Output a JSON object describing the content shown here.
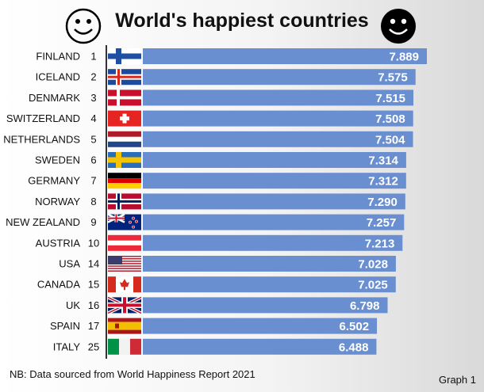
{
  "chart_data": {
    "type": "bar",
    "orientation": "horizontal",
    "title": "World's happiest countries",
    "categories": [
      "FINLAND",
      "ICELAND",
      "DENMARK",
      "SWITZERLAND",
      "NETHERLANDS",
      "SWEDEN",
      "GERMANY",
      "NORWAY",
      "NEW ZEALAND",
      "AUSTRIA",
      "USA",
      "CANADA",
      "UK",
      "SPAIN",
      "ITALY"
    ],
    "ranks": [
      "1",
      "2",
      "3",
      "4",
      "5",
      "6",
      "7",
      "8",
      "9",
      "10",
      "14",
      "15",
      "16",
      "17",
      "25"
    ],
    "values": [
      7.889,
      7.575,
      7.515,
      7.508,
      7.504,
      7.314,
      7.312,
      7.29,
      7.257,
      7.213,
      7.028,
      7.025,
      6.798,
      6.502,
      6.488
    ],
    "value_labels": [
      "7.889",
      "7.575",
      "7.515",
      "7.508",
      "7.504",
      "7.314",
      "7.312",
      "7.290",
      "7.257",
      "7.213",
      "7.028",
      "7.025",
      "6.798",
      "6.502",
      "6.488"
    ],
    "flags": [
      "finland-flag",
      "iceland-flag",
      "denmark-flag",
      "switzerland-flag",
      "netherlands-flag",
      "sweden-flag",
      "germany-flag",
      "norway-flag",
      "new-zealand-flag",
      "austria-flag",
      "usa-flag",
      "canada-flag",
      "uk-flag",
      "spain-flag",
      "italy-flag"
    ],
    "bar_color": "#6a8fd0",
    "xlim": [
      0,
      7.889
    ],
    "grid": false,
    "legend": "none"
  },
  "decorations": {
    "left_icon": "smiley-outline-icon",
    "right_icon": "smiley-filled-icon"
  },
  "footnote": "NB: Data sourced from World Happiness Report 2021",
  "graph_label": "Graph 1"
}
